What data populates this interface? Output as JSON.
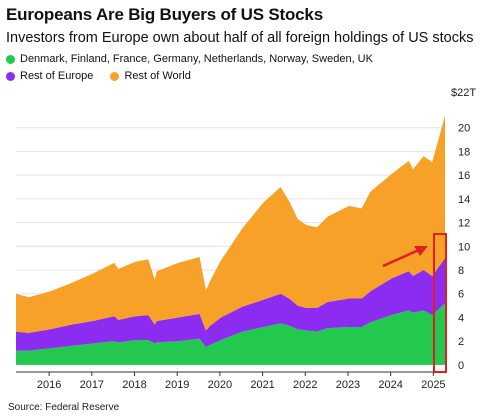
{
  "title": "Europeans Are Big Buyers of US Stocks",
  "subtitle": "Investors from Europe own about half of all foreign holdings of US stocks",
  "legend": [
    {
      "label": "Denmark, Finland, France, Germany, Netherlands, Norway, Sweden, UK",
      "color": "#22c94e"
    },
    {
      "label": "Rest of Europe",
      "color": "#8b2cf0"
    },
    {
      "label": "Rest of World",
      "color": "#f7a128"
    }
  ],
  "source": "Source: Federal Reserve",
  "colors": {
    "green": "#22c94e",
    "purple": "#8b2cf0",
    "orange": "#f7a128",
    "annotation": "#e02020",
    "grid": "#e4e4e4"
  },
  "chart_data": {
    "type": "area",
    "stacked": true,
    "x_unit": "year",
    "xlim": [
      2015.7,
      2025.75
    ],
    "ylim": [
      -0.6,
      22
    ],
    "y_unit_label": "$22T",
    "y_ticks": [
      0,
      2,
      4,
      6,
      8,
      10,
      12,
      14,
      16,
      18,
      20
    ],
    "x_ticks": [
      "2016",
      "2017",
      "2018",
      "2019",
      "2020",
      "2021",
      "2022",
      "2023",
      "2024",
      "2025"
    ],
    "grid": true,
    "x": [
      2015.7,
      2016.0,
      2016.5,
      2017.0,
      2017.5,
      2018.0,
      2018.1,
      2018.5,
      2018.8,
      2018.95,
      2019.0,
      2019.5,
      2020.0,
      2020.15,
      2020.25,
      2020.5,
      2021.0,
      2021.5,
      2021.9,
      2022.1,
      2022.3,
      2022.5,
      2022.75,
      2023.0,
      2023.5,
      2023.8,
      2024.0,
      2024.5,
      2024.9,
      2025.0,
      2025.25,
      2025.45,
      2025.75
    ],
    "series": [
      {
        "name": "Denmark, Finland, France, Germany, Netherlands, Norway, Sweden, UK",
        "values": [
          1.2,
          1.2,
          1.4,
          1.6,
          1.8,
          2.0,
          1.9,
          2.1,
          2.1,
          1.8,
          1.9,
          2.0,
          2.2,
          1.5,
          1.7,
          2.1,
          2.8,
          3.2,
          3.5,
          3.3,
          3.0,
          2.9,
          2.8,
          3.1,
          3.2,
          3.2,
          3.6,
          4.2,
          4.6,
          4.4,
          4.6,
          4.2,
          5.2
        ]
      },
      {
        "name": "Rest of Europe",
        "values": [
          1.6,
          1.5,
          1.6,
          1.8,
          1.9,
          2.1,
          1.9,
          2.0,
          2.1,
          1.6,
          1.8,
          2.0,
          2.1,
          1.4,
          1.6,
          1.9,
          2.1,
          2.3,
          2.5,
          2.3,
          2.0,
          1.9,
          2.0,
          2.2,
          2.4,
          2.4,
          2.6,
          3.1,
          3.3,
          3.1,
          3.4,
          3.3,
          3.8
        ]
      },
      {
        "name": "Rest of World",
        "values": [
          3.2,
          3.0,
          3.2,
          3.5,
          4.0,
          4.5,
          4.3,
          4.6,
          4.7,
          3.8,
          4.2,
          4.6,
          4.8,
          3.4,
          3.8,
          4.8,
          6.6,
          8.2,
          9.0,
          8.2,
          7.3,
          7.0,
          6.8,
          7.2,
          7.8,
          7.6,
          8.4,
          8.8,
          9.3,
          9.0,
          9.6,
          9.6,
          12.0
        ]
      }
    ],
    "annotations": [
      "red arrow pointing up-right toward latest values",
      "red box highlighting the final period"
    ]
  }
}
